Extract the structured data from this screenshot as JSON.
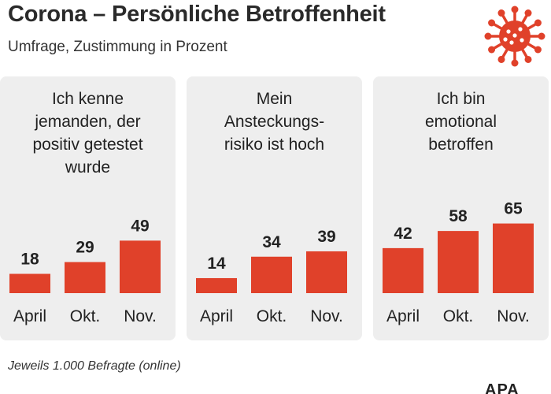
{
  "header": {
    "title": "Corona – Persönliche Betroffenheit",
    "subtitle": "Umfrage, Zustimmung in Prozent",
    "icon": "coronavirus-icon"
  },
  "colors": {
    "bar": "#e0412a",
    "panel": "#eeeeee",
    "icon": "#e0412a"
  },
  "chart_data": [
    {
      "type": "bar",
      "title": "Ich kenne jemanden, der positiv getestet wurde",
      "title_lines": [
        "Ich kenne",
        "jemanden, der",
        "positiv getestet",
        "wurde"
      ],
      "categories": [
        "April",
        "Okt.",
        "Nov."
      ],
      "values": [
        18,
        29,
        49
      ],
      "ylim": [
        0,
        100
      ]
    },
    {
      "type": "bar",
      "title": "Mein Ansteckungs-risiko ist hoch",
      "title_lines": [
        "Mein",
        "Ansteckungs-",
        "risiko ist hoch"
      ],
      "categories": [
        "April",
        "Okt.",
        "Nov."
      ],
      "values": [
        14,
        34,
        39
      ],
      "ylim": [
        0,
        100
      ]
    },
    {
      "type": "bar",
      "title": "Ich bin emotional betroffen",
      "title_lines": [
        "Ich bin",
        "emotional",
        "betroffen"
      ],
      "categories": [
        "April",
        "Okt.",
        "Nov."
      ],
      "values": [
        42,
        58,
        65
      ],
      "ylim": [
        0,
        100
      ]
    }
  ],
  "footer": {
    "note": "Jeweils 1.000 Befragte (online)",
    "logo": "APA"
  }
}
